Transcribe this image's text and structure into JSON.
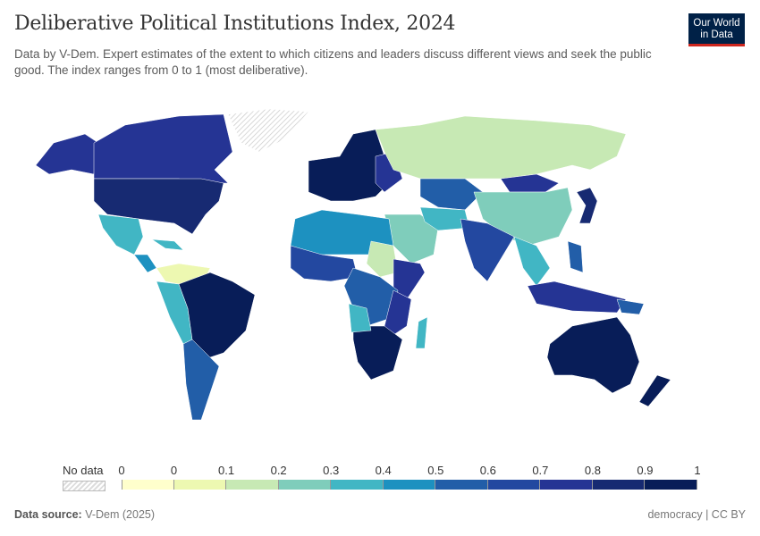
{
  "header": {
    "title": "Deliberative Political Institutions Index, 2024",
    "subtitle": "Data by V-Dem. Expert estimates of the extent to which citizens and leaders discuss different views and seek the public good. The index ranges from 0 to 1 (most deliberative).",
    "logo_line1": "Our World",
    "logo_line2": "in Data"
  },
  "legend": {
    "no_data_label": "No data",
    "tick_labels": [
      "0",
      "0",
      "0.1",
      "0.2",
      "0.3",
      "0.4",
      "0.5",
      "0.6",
      "0.7",
      "0.8",
      "0.9",
      "1"
    ],
    "bin_colors": [
      "#ffffcc",
      "#edf8b1",
      "#c7e9b4",
      "#7fcdbb",
      "#41b6c4",
      "#1d91c0",
      "#225ea8",
      "#2348a0",
      "#253494",
      "#172a72",
      "#081d58"
    ],
    "no_data_color": "#e8e8e8"
  },
  "footer": {
    "source_label": "Data source:",
    "source_value": "V-Dem (2025)",
    "right": "democracy | CC BY"
  }
}
